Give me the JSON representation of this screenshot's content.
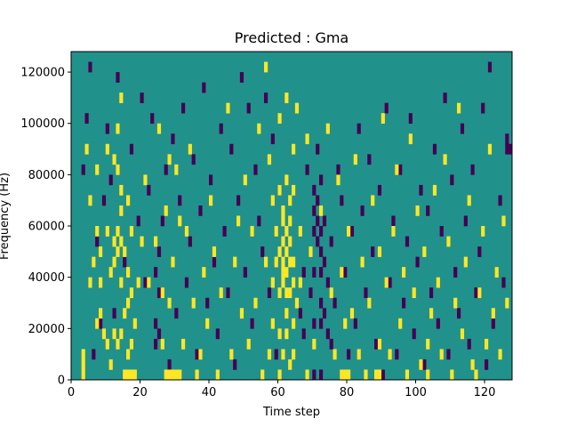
{
  "chart_data": {
    "type": "heatmap",
    "title": "Predicted : Gma",
    "xlabel": "Time step",
    "ylabel": "Frequency (Hz)",
    "xlim": [
      0,
      128
    ],
    "ylim": [
      0,
      128000
    ],
    "x_ticks": [
      0,
      20,
      40,
      60,
      80,
      100,
      120
    ],
    "y_ticks": [
      0,
      20000,
      40000,
      60000,
      80000,
      100000,
      120000
    ],
    "x_tick_labels": [
      "0",
      "20",
      "40",
      "60",
      "80",
      "100",
      "120"
    ],
    "y_tick_labels": [
      "0",
      "20000",
      "40000",
      "60000",
      "80000",
      "100000",
      "120000"
    ],
    "grid": false,
    "colors": {
      "background": "#21918c",
      "low": "#440154",
      "high": "#fde725"
    },
    "cell_value_legend": {
      "low": -1,
      "background": 0,
      "high": 1
    },
    "cell_size": {
      "time_steps": 1,
      "frequency_hz": 4000
    },
    "high_cells": [
      [
        3,
        0
      ],
      [
        3,
        1
      ],
      [
        3,
        2
      ],
      [
        4,
        22
      ],
      [
        5,
        17
      ],
      [
        5,
        9
      ],
      [
        6,
        11
      ],
      [
        7,
        14
      ],
      [
        7,
        20
      ],
      [
        7,
        5
      ],
      [
        8,
        9
      ],
      [
        8,
        12
      ],
      [
        8,
        6
      ],
      [
        9,
        4
      ],
      [
        10,
        3
      ],
      [
        10,
        14
      ],
      [
        10,
        22
      ],
      [
        11,
        10
      ],
      [
        11,
        1
      ],
      [
        12,
        13
      ],
      [
        12,
        21
      ],
      [
        12,
        11
      ],
      [
        12,
        4
      ],
      [
        13,
        14
      ],
      [
        13,
        20
      ],
      [
        13,
        24
      ],
      [
        13,
        3
      ],
      [
        13,
        12
      ],
      [
        14,
        4
      ],
      [
        14,
        13
      ],
      [
        14,
        16
      ],
      [
        14,
        18
      ],
      [
        14,
        27
      ],
      [
        14,
        9
      ],
      [
        15,
        0
      ],
      [
        15,
        6
      ],
      [
        15,
        12
      ],
      [
        16,
        0
      ],
      [
        16,
        2
      ],
      [
        16,
        7
      ],
      [
        16,
        10
      ],
      [
        16,
        17
      ],
      [
        17,
        0
      ],
      [
        17,
        3
      ],
      [
        17,
        8
      ],
      [
        17,
        14
      ],
      [
        18,
        0
      ],
      [
        18,
        5
      ],
      [
        19,
        9
      ],
      [
        20,
        13
      ],
      [
        21,
        19
      ],
      [
        22,
        9
      ],
      [
        24,
        13
      ],
      [
        25,
        24
      ],
      [
        26,
        3
      ],
      [
        26,
        8
      ],
      [
        27,
        0
      ],
      [
        27,
        16
      ],
      [
        28,
        0
      ],
      [
        28,
        7
      ],
      [
        28,
        21
      ],
      [
        29,
        0
      ],
      [
        29,
        11
      ],
      [
        30,
        0
      ],
      [
        30,
        20
      ],
      [
        31,
        0
      ],
      [
        31,
        15
      ],
      [
        32,
        3
      ],
      [
        33,
        14
      ],
      [
        34,
        22
      ],
      [
        35,
        7
      ],
      [
        36,
        0
      ],
      [
        37,
        2
      ],
      [
        38,
        10
      ],
      [
        39,
        5
      ],
      [
        40,
        17
      ],
      [
        41,
        12
      ],
      [
        42,
        0
      ],
      [
        43,
        8
      ],
      [
        45,
        26
      ],
      [
        46,
        2
      ],
      [
        47,
        11
      ],
      [
        48,
        15
      ],
      [
        49,
        6
      ],
      [
        50,
        19
      ],
      [
        51,
        3
      ],
      [
        52,
        14
      ],
      [
        53,
        7
      ],
      [
        54,
        24
      ],
      [
        55,
        0
      ],
      [
        56,
        11
      ],
      [
        56,
        30
      ],
      [
        57,
        2
      ],
      [
        57,
        21
      ],
      [
        58,
        5
      ],
      [
        58,
        9
      ],
      [
        58,
        17
      ],
      [
        59,
        11
      ],
      [
        59,
        14
      ],
      [
        60,
        0
      ],
      [
        60,
        4
      ],
      [
        60,
        8
      ],
      [
        60,
        12
      ],
      [
        60,
        18
      ],
      [
        60,
        25
      ],
      [
        61,
        2
      ],
      [
        61,
        9
      ],
      [
        61,
        10
      ],
      [
        61,
        11
      ],
      [
        61,
        13
      ],
      [
        61,
        15
      ],
      [
        61,
        16
      ],
      [
        62,
        4
      ],
      [
        62,
        6
      ],
      [
        62,
        8
      ],
      [
        62,
        10
      ],
      [
        62,
        12
      ],
      [
        62,
        14
      ],
      [
        62,
        19
      ],
      [
        62,
        27
      ],
      [
        63,
        1
      ],
      [
        63,
        8
      ],
      [
        63,
        11
      ],
      [
        63,
        13
      ],
      [
        63,
        15
      ],
      [
        63,
        17
      ],
      [
        64,
        2
      ],
      [
        64,
        5
      ],
      [
        64,
        9
      ],
      [
        64,
        11
      ],
      [
        64,
        18
      ],
      [
        64,
        22
      ],
      [
        65,
        7
      ],
      [
        65,
        26
      ],
      [
        66,
        9
      ],
      [
        66,
        14
      ],
      [
        68,
        0
      ],
      [
        68,
        23
      ],
      [
        69,
        12
      ],
      [
        70,
        3
      ],
      [
        72,
        16
      ],
      [
        74,
        24
      ],
      [
        75,
        8
      ],
      [
        76,
        2
      ],
      [
        77,
        19
      ],
      [
        78,
        0
      ],
      [
        78,
        10
      ],
      [
        79,
        0
      ],
      [
        79,
        5
      ],
      [
        80,
        0
      ],
      [
        80,
        14
      ],
      [
        81,
        6
      ],
      [
        82,
        21
      ],
      [
        83,
        2
      ],
      [
        84,
        11
      ],
      [
        85,
        0
      ],
      [
        86,
        7
      ],
      [
        87,
        17
      ],
      [
        88,
        0
      ],
      [
        89,
        0
      ],
      [
        89,
        3
      ],
      [
        89,
        12
      ],
      [
        90,
        25
      ],
      [
        91,
        9
      ],
      [
        92,
        2
      ],
      [
        93,
        14
      ],
      [
        94,
        20
      ],
      [
        95,
        5
      ],
      [
        96,
        10
      ],
      [
        97,
        0
      ],
      [
        98,
        23
      ],
      [
        99,
        8
      ],
      [
        100,
        16
      ],
      [
        101,
        1
      ],
      [
        102,
        12
      ],
      [
        103,
        0
      ],
      [
        103,
        3
      ],
      [
        104,
        6
      ],
      [
        105,
        18
      ],
      [
        106,
        9
      ],
      [
        107,
        2
      ],
      [
        108,
        21
      ],
      [
        109,
        13
      ],
      [
        110,
        0
      ],
      [
        111,
        7
      ],
      [
        112,
        26
      ],
      [
        113,
        4
      ],
      [
        114,
        11
      ],
      [
        115,
        17
      ],
      [
        116,
        1
      ],
      [
        117,
        0
      ],
      [
        118,
        8
      ],
      [
        119,
        14
      ],
      [
        120,
        3
      ],
      [
        121,
        22
      ],
      [
        122,
        6
      ],
      [
        123,
        10
      ],
      [
        124,
        2
      ],
      [
        125,
        15
      ],
      [
        126,
        7
      ]
    ],
    "low_cells": [
      [
        3,
        20
      ],
      [
        4,
        25
      ],
      [
        5,
        30
      ],
      [
        6,
        2
      ],
      [
        7,
        13
      ],
      [
        8,
        5
      ],
      [
        9,
        17
      ],
      [
        10,
        24
      ],
      [
        11,
        19
      ],
      [
        12,
        6
      ],
      [
        13,
        29
      ],
      [
        15,
        11
      ],
      [
        17,
        22
      ],
      [
        19,
        15
      ],
      [
        20,
        27
      ],
      [
        21,
        9
      ],
      [
        22,
        18
      ],
      [
        23,
        25
      ],
      [
        24,
        3
      ],
      [
        24,
        10
      ],
      [
        24,
        5
      ],
      [
        25,
        4
      ],
      [
        25,
        8
      ],
      [
        25,
        12
      ],
      [
        26,
        15
      ],
      [
        27,
        20
      ],
      [
        28,
        1
      ],
      [
        29,
        23
      ],
      [
        30,
        6
      ],
      [
        31,
        17
      ],
      [
        32,
        26
      ],
      [
        33,
        9
      ],
      [
        34,
        13
      ],
      [
        35,
        21
      ],
      [
        36,
        2
      ],
      [
        37,
        16
      ],
      [
        38,
        28
      ],
      [
        39,
        7
      ],
      [
        40,
        19
      ],
      [
        41,
        11
      ],
      [
        42,
        4
      ],
      [
        43,
        24
      ],
      [
        44,
        14
      ],
      [
        45,
        8
      ],
      [
        46,
        22
      ],
      [
        47,
        1
      ],
      [
        48,
        17
      ],
      [
        49,
        29
      ],
      [
        50,
        10
      ],
      [
        51,
        26
      ],
      [
        52,
        5
      ],
      [
        53,
        20
      ],
      [
        54,
        15
      ],
      [
        55,
        12
      ],
      [
        56,
        27
      ],
      [
        57,
        8
      ],
      [
        58,
        23
      ],
      [
        59,
        2
      ],
      [
        60,
        18
      ],
      [
        66,
        6
      ],
      [
        67,
        4
      ],
      [
        67,
        10
      ],
      [
        68,
        20
      ],
      [
        69,
        8
      ],
      [
        70,
        0
      ],
      [
        70,
        5
      ],
      [
        70,
        10
      ],
      [
        70,
        14
      ],
      [
        70,
        16
      ],
      [
        70,
        18
      ],
      [
        71,
        13
      ],
      [
        71,
        15
      ],
      [
        71,
        17
      ],
      [
        71,
        22
      ],
      [
        72,
        0
      ],
      [
        72,
        5
      ],
      [
        72,
        7
      ],
      [
        72,
        10
      ],
      [
        72,
        12
      ],
      [
        72,
        14
      ],
      [
        72,
        19
      ],
      [
        73,
        6
      ],
      [
        73,
        11
      ],
      [
        73,
        15
      ],
      [
        74,
        4
      ],
      [
        74,
        9
      ],
      [
        75,
        3
      ],
      [
        75,
        13
      ],
      [
        76,
        7
      ],
      [
        77,
        20
      ],
      [
        78,
        17
      ],
      [
        79,
        10
      ],
      [
        80,
        2
      ],
      [
        81,
        14
      ],
      [
        82,
        5
      ],
      [
        83,
        24
      ],
      [
        84,
        16
      ],
      [
        85,
        8
      ],
      [
        86,
        21
      ],
      [
        87,
        12
      ],
      [
        88,
        3
      ],
      [
        89,
        18
      ],
      [
        90,
        0
      ],
      [
        91,
        26
      ],
      [
        92,
        9
      ],
      [
        93,
        15
      ],
      [
        94,
        2
      ],
      [
        95,
        20
      ],
      [
        96,
        7
      ],
      [
        97,
        13
      ],
      [
        98,
        25
      ],
      [
        99,
        4
      ],
      [
        100,
        11
      ],
      [
        101,
        18
      ],
      [
        102,
        1
      ],
      [
        103,
        16
      ],
      [
        104,
        8
      ],
      [
        105,
        22
      ],
      [
        106,
        5
      ],
      [
        107,
        14
      ],
      [
        108,
        27
      ],
      [
        109,
        2
      ],
      [
        110,
        19
      ],
      [
        111,
        10
      ],
      [
        112,
        6
      ],
      [
        113,
        24
      ],
      [
        114,
        15
      ],
      [
        115,
        3
      ],
      [
        116,
        20
      ],
      [
        117,
        8
      ],
      [
        118,
        12
      ],
      [
        119,
        26
      ],
      [
        120,
        1
      ],
      [
        121,
        30
      ],
      [
        122,
        5
      ],
      [
        124,
        17
      ],
      [
        125,
        9
      ],
      [
        126,
        23
      ],
      [
        126,
        22
      ],
      [
        127,
        22
      ]
    ]
  }
}
